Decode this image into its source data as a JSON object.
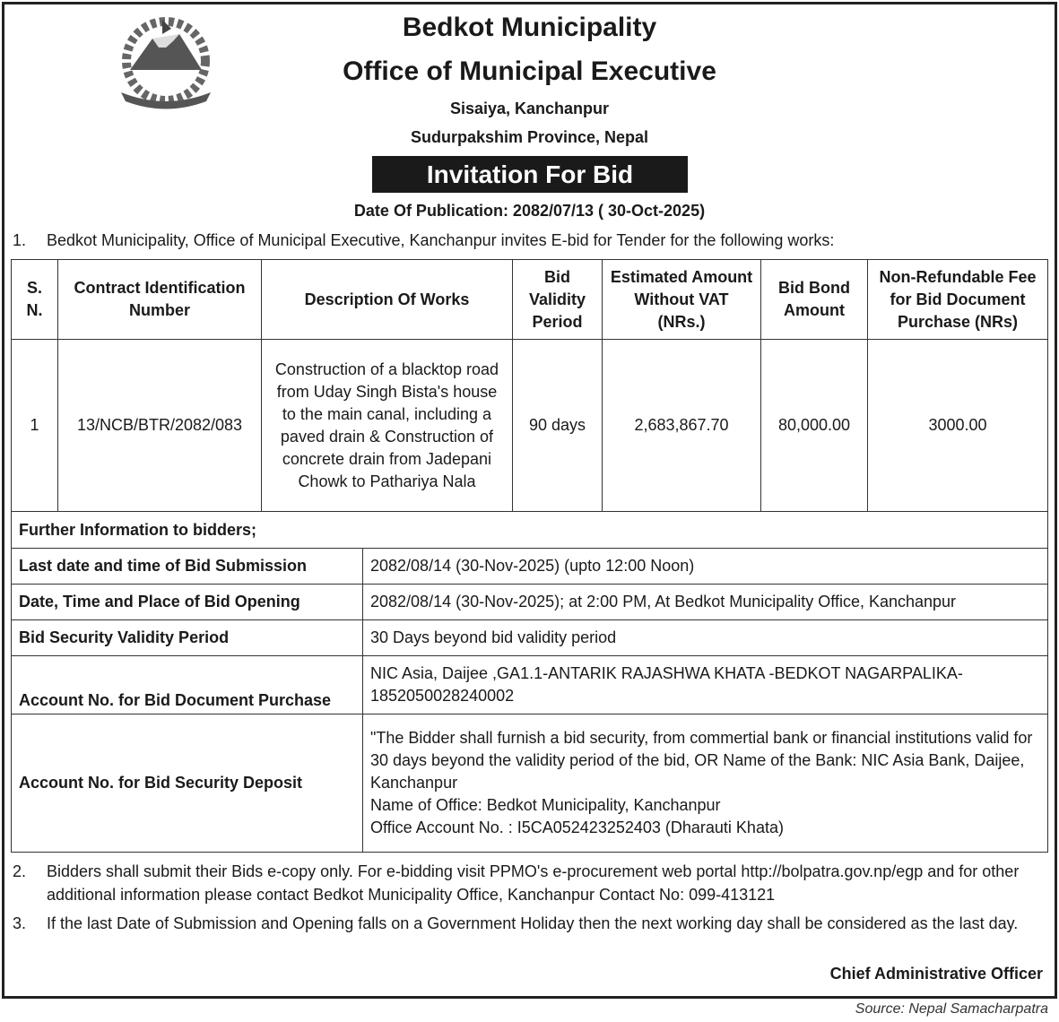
{
  "header": {
    "org": "Bedkot  Municipality",
    "office": "Office of Municipal Executive",
    "address1": "Sisaiya, Kanchanpur",
    "address2": "Sudurpakshim Province, Nepal",
    "notice_title": "Invitation For Bid",
    "publication_date": "Date Of Publication: 2082/07/13 ( 30-Oct-2025)"
  },
  "logo": {
    "name": "nepal-government-emblem",
    "text": "Government of Nepal emblem"
  },
  "items": [
    {
      "num": "1.",
      "text": "Bedkot  Municipality, Office of Municipal Executive, Kanchanpur  invites E-bid  for Tender  for the following works:"
    },
    {
      "num": "2.",
      "text": "Bidders shall submit their Bids e-copy only. For e-bidding visit PPMO's e-procurement web portal http://bolpatra.gov.np/egp and for other additional information please contact Bedkot Municipality Office, Kanchanpur  Contact No: 099-413121"
    },
    {
      "num": "3.",
      "text": "If the last Date of Submission and Opening falls on a Government Holiday then the next working day shall be considered as the last day."
    }
  ],
  "table": {
    "headers": [
      "S. N.",
      "Contract Identification Number",
      "Description Of Works",
      "Bid Validity Period",
      "Estimated Amount Without VAT  (NRs.)",
      "Bid Bond Amount",
      "Non-Refundable Fee for Bid Document Purchase (NRs)"
    ],
    "rows": [
      [
        "1",
        "13/NCB/BTR/2082/083",
        "Construction of a blacktop road from Uday Singh Bista's house to the main canal, including a paved drain & Construction of concrete drain from Jadepani Chowk to Pathariya Nala",
        "90 days",
        "2,683,867.70",
        "80,000.00",
        "3000.00"
      ]
    ]
  },
  "info": {
    "heading": "Further Information to bidders;",
    "rows": [
      {
        "label": "Last date and time of Bid  Submission",
        "value": [
          "2082/08/14  (30-Nov-2025) (upto 12:00 Noon)"
        ]
      },
      {
        "label": "Date, Time and Place of Bid  Opening",
        "value": [
          "2082/08/14  (30-Nov-2025); at 2:00 PM, At Bedkot Municipality Office, Kanchanpur"
        ]
      },
      {
        "label": "Bid Security Validity Period",
        "value": [
          "30 Days beyond bid validity period"
        ]
      },
      {
        "label": "Account No. for Bid Document Purchase",
        "value": [
          "NIC Asia, Daijee ,GA1.1-ANTARIK RAJASHWA  KHATA -BEDKOT NAGARPALIKA-185205002824000​2"
        ]
      },
      {
        "label": "Account No. for Bid Security Deposit",
        "value": [
          "\"The Bidder shall furnish a bid security, from commertial bank or financial institutions valid for 30 days beyond the validity period of the bid, OR Name of the Bank: NIC Asia Bank, Daijee, Kanchanpur",
          "Name of Office: Bedkot Municipality, Kanchanpur",
          "Office Account No. : I5CA052423252403 (Dharauti Khata)"
        ]
      }
    ]
  },
  "signature": "Chief Administrative Officer",
  "source": "Source: Nepal Samacharpatra"
}
